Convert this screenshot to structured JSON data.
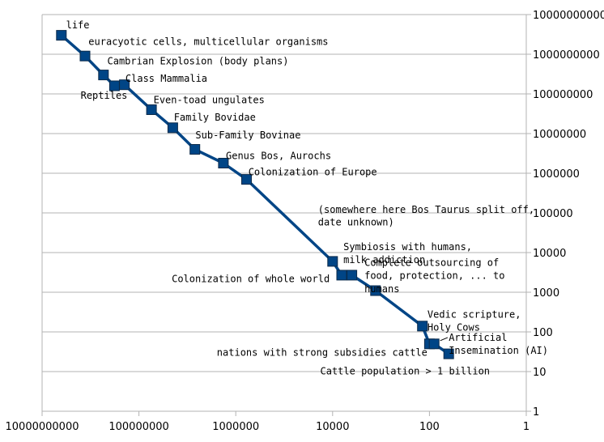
{
  "chart_data": {
    "type": "line",
    "title": "",
    "xlabel": "",
    "ylabel": "",
    "x_scale": "log",
    "y_scale": "log",
    "x_reversed": true,
    "xlim": [
      10000000000,
      1
    ],
    "ylim": [
      1,
      10000000000
    ],
    "grid": "horizontal",
    "legend": "none",
    "colors": {
      "series": "#004586",
      "grid": "#b3b3b3"
    },
    "x_tick_labels": [
      "10000000000",
      "100000000",
      "1000000",
      "10000",
      "100",
      "1"
    ],
    "y_tick_labels": [
      "1",
      "10",
      "100",
      "1000",
      "10000",
      "100000",
      "1000000",
      "10000000",
      "100000000",
      "1000000000",
      "10000000000"
    ],
    "series": [
      {
        "points": [
          {
            "x": 4000000000,
            "y": 3000000000
          },
          {
            "x": 1300000000,
            "y": 900000000
          },
          {
            "x": 540000000,
            "y": 300000000
          },
          {
            "x": 320000000,
            "y": 160000000
          },
          {
            "x": 200000000,
            "y": 170000000
          },
          {
            "x": 55000000,
            "y": 40000000
          },
          {
            "x": 20000000,
            "y": 14000000
          },
          {
            "x": 7000000,
            "y": 4000000
          },
          {
            "x": 1800000,
            "y": 1800000
          },
          {
            "x": 600000,
            "y": 700000
          },
          {
            "x": 10000,
            "y": 6000
          },
          {
            "x": 6500,
            "y": 2700
          },
          {
            "x": 4000,
            "y": 2700
          },
          {
            "x": 1300,
            "y": 1100
          },
          {
            "x": 140,
            "y": 140
          },
          {
            "x": 100,
            "y": 50
          },
          {
            "x": 80,
            "y": 50
          },
          {
            "x": 40,
            "y": 28
          }
        ]
      }
    ],
    "annotations": [
      {
        "text": "life",
        "x": 3200000000,
        "y": 4500000000,
        "anchor": "start"
      },
      {
        "text": "euracyotic cells, multicellular organisms",
        "x": 1100000000,
        "y": 1700000000,
        "anchor": "start"
      },
      {
        "text": "Cambrian Explosion (body plans)",
        "x": 450000000,
        "y": 550000000,
        "anchor": "start"
      },
      {
        "text": "Class Mammalia",
        "x": 190000000,
        "y": 200000000,
        "anchor": "start"
      },
      {
        "text": "Reptiles",
        "x": 1600000000,
        "y": 75000000,
        "anchor": "start"
      },
      {
        "text": "Even-toad ungulates",
        "x": 50000000,
        "y": 58000000,
        "anchor": "start"
      },
      {
        "text": "Family Bovidae",
        "x": 19000000,
        "y": 21000000,
        "anchor": "start"
      },
      {
        "text": "Sub-Family Bovinae",
        "x": 6800000,
        "y": 7500000,
        "anchor": "start"
      },
      {
        "text": "Genus Bos, Aurochs",
        "x": 1600000,
        "y": 2300000,
        "anchor": "start"
      },
      {
        "text": "Colonization of Europe",
        "x": 550000,
        "y": 880000,
        "anchor": "start"
      },
      {
        "text": "(somewhere here Bos Taurus split off,",
        "x": 20000,
        "y": 100000,
        "anchor": "start"
      },
      {
        "text": "date unknown)",
        "x": 20000,
        "y": 48000,
        "anchor": "start"
      },
      {
        "text": "Symbiosis with humans,",
        "x": 6000,
        "y": 11500,
        "anchor": "start"
      },
      {
        "text": "milk addiction",
        "x": 6000,
        "y": 5400,
        "anchor": "start"
      },
      {
        "text": "Colonization of whole world",
        "x": 11500,
        "y": 1800,
        "anchor": "end"
      },
      {
        "text": "Complete outsourcing of",
        "x": 2200,
        "y": 4600,
        "anchor": "start"
      },
      {
        "text": "food, protection, ... to",
        "x": 2200,
        "y": 2150,
        "anchor": "start"
      },
      {
        "text": "humans",
        "x": 2200,
        "y": 1000,
        "anchor": "start"
      },
      {
        "text": "Vedic scripture,",
        "x": 110,
        "y": 230,
        "anchor": "start"
      },
      {
        "text": "Holy Cows",
        "x": 110,
        "y": 108,
        "anchor": "start"
      },
      {
        "text": "Artificial",
        "x": 40,
        "y": 60,
        "anchor": "start"
      },
      {
        "text": "Insemination (AI)",
        "x": 40,
        "y": 28,
        "anchor": "start"
      },
      {
        "text": "nations with strong subsidies cattle",
        "x": 110,
        "y": 25,
        "anchor": "end"
      },
      {
        "text": "Cattle population > 1 billion",
        "x": 18000,
        "y": 8.5,
        "anchor": "start"
      }
    ]
  }
}
